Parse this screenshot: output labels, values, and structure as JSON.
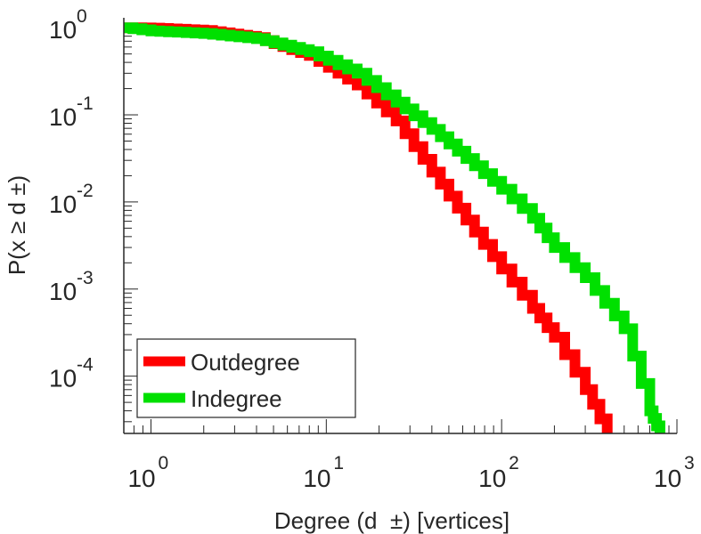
{
  "chart_data": {
    "type": "line",
    "scale": "log-log",
    "xlabel": "Degree (d  ±) [vertices]",
    "ylabel": "P(x ≥ d ±)",
    "xlim": [
      0.7,
      1000
    ],
    "ylim": [
      2.2e-05,
      1.3
    ],
    "x_ticks": [
      {
        "base": "10",
        "exp": "0",
        "value": 1
      },
      {
        "base": "10",
        "exp": "1",
        "value": 10
      },
      {
        "base": "10",
        "exp": "2",
        "value": 100
      },
      {
        "base": "10",
        "exp": "3",
        "value": 1000
      }
    ],
    "y_ticks": [
      {
        "base": "10",
        "exp": "0",
        "value": 1
      },
      {
        "base": "10",
        "exp": "-1",
        "value": 0.1
      },
      {
        "base": "10",
        "exp": "-2",
        "value": 0.01
      },
      {
        "base": "10",
        "exp": "-3",
        "value": 0.001
      },
      {
        "base": "10",
        "exp": "-4",
        "value": 0.0001
      }
    ],
    "legend": {
      "placement": "bottom-left"
    },
    "series": [
      {
        "name": "Outdegree",
        "color": "#ff0000",
        "x": [
          0.7,
          1,
          2,
          4,
          8,
          15,
          25,
          40,
          70,
          100,
          150,
          200,
          300,
          400
        ],
        "y": [
          1.0,
          0.99,
          0.93,
          0.77,
          0.48,
          0.22,
          0.085,
          0.022,
          0.0045,
          0.0017,
          0.0006,
          0.00028,
          7e-05,
          2.2e-05
        ]
      },
      {
        "name": "Indegree",
        "color": "#00e000",
        "x": [
          0.7,
          1,
          2,
          4,
          8,
          15,
          25,
          40,
          70,
          100,
          150,
          200,
          300,
          500,
          700,
          800
        ],
        "y": [
          1.0,
          0.92,
          0.86,
          0.75,
          0.53,
          0.3,
          0.14,
          0.068,
          0.026,
          0.014,
          0.0065,
          0.003,
          0.00135,
          0.00035,
          4e-05,
          2.2e-05
        ]
      }
    ]
  }
}
